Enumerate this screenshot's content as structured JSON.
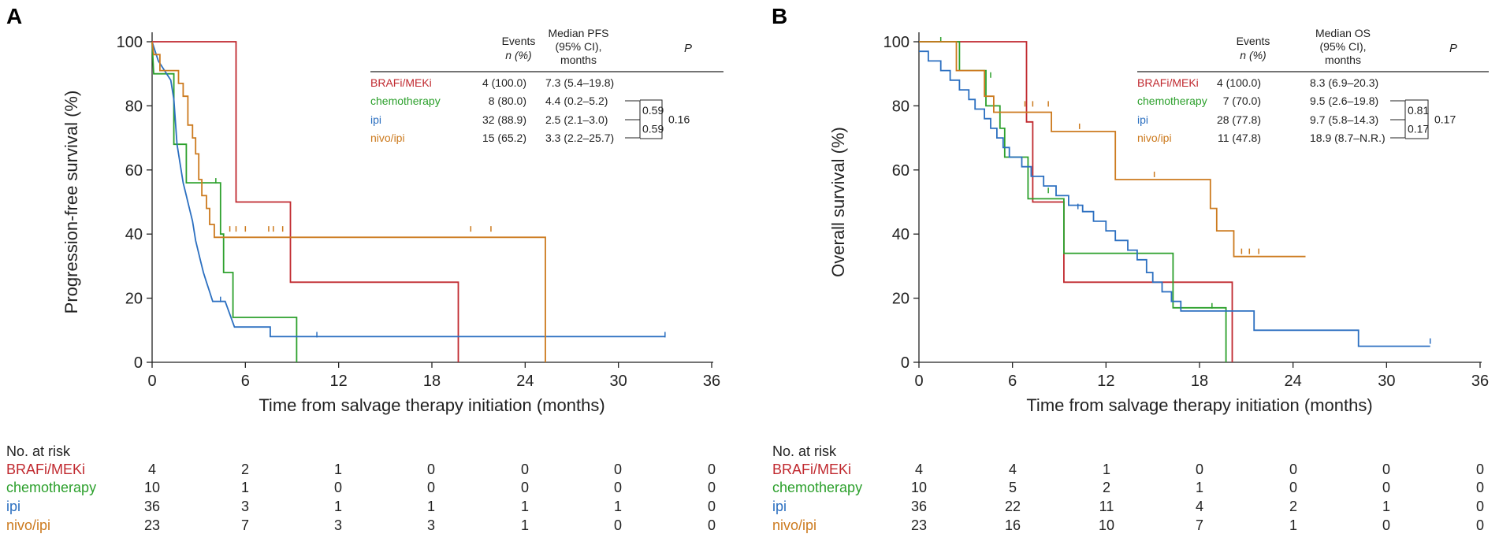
{
  "chart_data": [
    {
      "type": "kaplan-meier",
      "panel_label": "A",
      "ylabel": "Progression-free survival (%)",
      "xlabel": "Time from salvage therapy initiation (months)",
      "xlim": [
        0,
        36
      ],
      "ylim": [
        0,
        100
      ],
      "xticks": [
        0,
        6,
        12,
        18,
        24,
        30,
        36
      ],
      "yticks": [
        0,
        20,
        40,
        60,
        80,
        100
      ],
      "table_header": {
        "events": "Events",
        "events_sub": "n (%)",
        "median_l1": "Median PFS",
        "median_l2": "(95% CI),",
        "median_l3": "months",
        "p": "P"
      },
      "series": [
        {
          "name": "BRAFi/MEKi",
          "color": "#c0282e",
          "events": "4 (100.0)",
          "median": "7.3 (5.4–19.8)",
          "steps": [
            [
              0,
              100
            ],
            [
              5.4,
              100
            ],
            [
              5.4,
              50
            ],
            [
              8.9,
              50
            ],
            [
              8.9,
              25
            ],
            [
              19.7,
              25
            ],
            [
              19.7,
              0
            ]
          ],
          "censors": []
        },
        {
          "name": "chemotherapy",
          "color": "#2ca02c",
          "events": "8 (80.0)",
          "median": "4.4 (0.2–5.2)",
          "steps": [
            [
              0,
              100
            ],
            [
              0.1,
              90
            ],
            [
              1.4,
              90
            ],
            [
              1.4,
              68
            ],
            [
              2.2,
              68
            ],
            [
              2.2,
              56
            ],
            [
              4.4,
              56
            ],
            [
              4.4,
              40
            ],
            [
              4.6,
              40
            ],
            [
              4.6,
              28
            ],
            [
              5.2,
              28
            ],
            [
              5.2,
              14
            ],
            [
              9.3,
              14
            ],
            [
              9.3,
              0
            ]
          ],
          "censors": [
            [
              4.1,
              56
            ]
          ]
        },
        {
          "name": "ipi",
          "color": "#2b6fc0",
          "events": "32 (88.9)",
          "median": "2.5 (2.1–3.0)",
          "steps": [
            [
              0,
              100
            ],
            [
              0.2,
              97
            ],
            [
              0.4,
              94
            ],
            [
              0.8,
              91
            ],
            [
              1.2,
              88
            ],
            [
              1.4,
              82
            ],
            [
              1.5,
              75
            ],
            [
              1.6,
              68
            ],
            [
              1.8,
              62
            ],
            [
              2.0,
              56
            ],
            [
              2.2,
              52
            ],
            [
              2.4,
              48
            ],
            [
              2.6,
              44
            ],
            [
              2.8,
              38
            ],
            [
              3.1,
              32
            ],
            [
              3.3,
              28
            ],
            [
              3.5,
              25
            ],
            [
              3.7,
              22
            ],
            [
              3.9,
              19
            ],
            [
              4.7,
              19
            ],
            [
              5.0,
              15
            ],
            [
              5.3,
              11
            ],
            [
              7.6,
              11
            ],
            [
              7.6,
              8
            ],
            [
              33,
              8
            ]
          ],
          "censors": [
            [
              4.4,
              19
            ],
            [
              10.6,
              8
            ],
            [
              33,
              8
            ]
          ]
        },
        {
          "name": "nivo/ipi",
          "color": "#cc7a1e",
          "events": "15 (65.2)",
          "median": "3.3 (2.2–25.7)",
          "steps": [
            [
              0,
              100
            ],
            [
              0.1,
              96
            ],
            [
              0.5,
              96
            ],
            [
              0.5,
              91
            ],
            [
              1.7,
              91
            ],
            [
              1.7,
              87
            ],
            [
              2.0,
              87
            ],
            [
              2.0,
              83
            ],
            [
              2.3,
              83
            ],
            [
              2.3,
              74
            ],
            [
              2.6,
              74
            ],
            [
              2.6,
              70
            ],
            [
              2.8,
              70
            ],
            [
              2.8,
              65
            ],
            [
              3.0,
              65
            ],
            [
              3.0,
              57
            ],
            [
              3.2,
              57
            ],
            [
              3.2,
              52
            ],
            [
              3.5,
              52
            ],
            [
              3.5,
              48
            ],
            [
              3.7,
              48
            ],
            [
              3.7,
              43
            ],
            [
              4.0,
              43
            ],
            [
              4.0,
              39
            ],
            [
              25.3,
              39
            ],
            [
              25.3,
              0
            ]
          ],
          "censors": [
            [
              5.0,
              41
            ],
            [
              5.4,
              41
            ],
            [
              6.0,
              41
            ],
            [
              7.5,
              41
            ],
            [
              7.8,
              41
            ],
            [
              8.4,
              41
            ],
            [
              20.5,
              41
            ],
            [
              21.8,
              41
            ]
          ]
        }
      ],
      "p_values": {
        "chemo_vs_ipi": "0.59",
        "ipi_vs_nivoipi": "0.59",
        "overall": "0.16"
      },
      "risk_table": {
        "title": "No. at risk",
        "rows": [
          {
            "name": "BRAFi/MEKi",
            "values": [
              "4",
              "2",
              "1",
              "0",
              "0",
              "0",
              "0"
            ]
          },
          {
            "name": "chemotherapy",
            "values": [
              "10",
              "1",
              "0",
              "0",
              "0",
              "0",
              "0"
            ]
          },
          {
            "name": "ipi",
            "values": [
              "36",
              "3",
              "1",
              "1",
              "1",
              "1",
              "0"
            ]
          },
          {
            "name": "nivo/ipi",
            "values": [
              "23",
              "7",
              "3",
              "3",
              "1",
              "0",
              "0"
            ]
          }
        ]
      }
    },
    {
      "type": "kaplan-meier",
      "panel_label": "B",
      "ylabel": "Overall survival (%)",
      "xlabel": "Time from salvage therapy initiation (months)",
      "xlim": [
        0,
        36
      ],
      "ylim": [
        0,
        100
      ],
      "xticks": [
        0,
        6,
        12,
        18,
        24,
        30,
        36
      ],
      "yticks": [
        0,
        20,
        40,
        60,
        80,
        100
      ],
      "table_header": {
        "events": "Events",
        "events_sub": "n (%)",
        "median_l1": "Median OS",
        "median_l2": "(95% CI),",
        "median_l3": "months",
        "p": "P"
      },
      "series": [
        {
          "name": "BRAFi/MEKi",
          "color": "#c0282e",
          "events": "4 (100.0)",
          "median": "8.3 (6.9–20.3)",
          "steps": [
            [
              0,
              100
            ],
            [
              6.9,
              100
            ],
            [
              6.9,
              75
            ],
            [
              7.3,
              75
            ],
            [
              7.3,
              50
            ],
            [
              9.3,
              50
            ],
            [
              9.3,
              25
            ],
            [
              20.1,
              25
            ],
            [
              20.1,
              0
            ]
          ],
          "censors": []
        },
        {
          "name": "chemotherapy",
          "color": "#2ca02c",
          "events": "7 (70.0)",
          "median": "9.5 (2.6–19.8)",
          "steps": [
            [
              0,
              100
            ],
            [
              2.6,
              100
            ],
            [
              2.6,
              91
            ],
            [
              4.3,
              91
            ],
            [
              4.3,
              80
            ],
            [
              5.2,
              80
            ],
            [
              5.2,
              73
            ],
            [
              5.5,
              73
            ],
            [
              5.5,
              64
            ],
            [
              7.0,
              64
            ],
            [
              7.0,
              51
            ],
            [
              9.3,
              51
            ],
            [
              9.3,
              34
            ],
            [
              16.3,
              34
            ],
            [
              16.3,
              17
            ],
            [
              19.7,
              17
            ],
            [
              19.7,
              0
            ]
          ],
          "censors": [
            [
              1.4,
              100
            ],
            [
              4.6,
              89
            ],
            [
              8.3,
              53
            ],
            [
              18.8,
              17
            ]
          ]
        },
        {
          "name": "ipi",
          "color": "#2b6fc0",
          "events": "28 (77.8)",
          "median": "9.7 (5.8–14.3)",
          "steps": [
            [
              0,
              97
            ],
            [
              0.6,
              97
            ],
            [
              0.6,
              94
            ],
            [
              1.4,
              94
            ],
            [
              1.4,
              91
            ],
            [
              2.0,
              91
            ],
            [
              2.0,
              88
            ],
            [
              2.6,
              88
            ],
            [
              2.6,
              85
            ],
            [
              3.2,
              85
            ],
            [
              3.2,
              82
            ],
            [
              3.6,
              82
            ],
            [
              3.6,
              79
            ],
            [
              4.2,
              79
            ],
            [
              4.2,
              76
            ],
            [
              4.6,
              76
            ],
            [
              4.6,
              73
            ],
            [
              5.0,
              73
            ],
            [
              5.0,
              70
            ],
            [
              5.4,
              70
            ],
            [
              5.4,
              67
            ],
            [
              5.8,
              67
            ],
            [
              5.8,
              64
            ],
            [
              6.6,
              64
            ],
            [
              6.6,
              61
            ],
            [
              7.2,
              61
            ],
            [
              7.2,
              58
            ],
            [
              8.0,
              58
            ],
            [
              8.0,
              55
            ],
            [
              8.8,
              55
            ],
            [
              8.8,
              52
            ],
            [
              9.6,
              52
            ],
            [
              9.6,
              49
            ],
            [
              10.5,
              49
            ],
            [
              10.5,
              47
            ],
            [
              11.2,
              47
            ],
            [
              11.2,
              44
            ],
            [
              12.0,
              44
            ],
            [
              12.0,
              41
            ],
            [
              12.6,
              41
            ],
            [
              12.6,
              38
            ],
            [
              13.4,
              38
            ],
            [
              13.4,
              35
            ],
            [
              14.0,
              35
            ],
            [
              14.0,
              32
            ],
            [
              14.6,
              32
            ],
            [
              14.6,
              28
            ],
            [
              15.0,
              28
            ],
            [
              15.0,
              25
            ],
            [
              15.6,
              25
            ],
            [
              15.6,
              22
            ],
            [
              16.2,
              22
            ],
            [
              16.2,
              19
            ],
            [
              16.8,
              19
            ],
            [
              16.8,
              16
            ],
            [
              21.5,
              16
            ],
            [
              21.5,
              10
            ],
            [
              28.2,
              10
            ],
            [
              28.2,
              5
            ],
            [
              32.8,
              5
            ]
          ],
          "censors": [
            [
              10.2,
              48
            ],
            [
              32.8,
              6
            ]
          ]
        },
        {
          "name": "nivo/ipi",
          "color": "#cc7a1e",
          "events": "11 (47.8)",
          "median": "18.9 (8.7–N.R.)",
          "steps": [
            [
              0,
              100
            ],
            [
              2.4,
              100
            ],
            [
              2.4,
              91
            ],
            [
              4.2,
              91
            ],
            [
              4.2,
              83
            ],
            [
              4.8,
              83
            ],
            [
              4.8,
              78
            ],
            [
              8.5,
              78
            ],
            [
              8.5,
              72
            ],
            [
              12.6,
              72
            ],
            [
              12.6,
              57
            ],
            [
              18.7,
              57
            ],
            [
              18.7,
              48
            ],
            [
              19.1,
              48
            ],
            [
              19.1,
              41
            ],
            [
              20.2,
              41
            ],
            [
              20.2,
              33
            ],
            [
              24.8,
              33
            ]
          ],
          "censors": [
            [
              6.8,
              80
            ],
            [
              7.3,
              80
            ],
            [
              8.3,
              80
            ],
            [
              10.3,
              73
            ],
            [
              15.1,
              58
            ],
            [
              20.7,
              34
            ],
            [
              21.2,
              34
            ],
            [
              21.8,
              34
            ]
          ]
        }
      ],
      "p_values": {
        "chemo_vs_ipi": "0.81",
        "ipi_vs_nivoipi": "0.17",
        "overall": "0.17"
      },
      "risk_table": {
        "title": "No. at risk",
        "rows": [
          {
            "name": "BRAFi/MEKi",
            "values": [
              "4",
              "4",
              "1",
              "0",
              "0",
              "0",
              "0"
            ]
          },
          {
            "name": "chemotherapy",
            "values": [
              "10",
              "5",
              "2",
              "1",
              "0",
              "0",
              "0"
            ]
          },
          {
            "name": "ipi",
            "values": [
              "36",
              "22",
              "11",
              "4",
              "2",
              "1",
              "0"
            ]
          },
          {
            "name": "nivo/ipi",
            "values": [
              "23",
              "16",
              "10",
              "7",
              "1",
              "0",
              "0"
            ]
          }
        ]
      }
    }
  ]
}
